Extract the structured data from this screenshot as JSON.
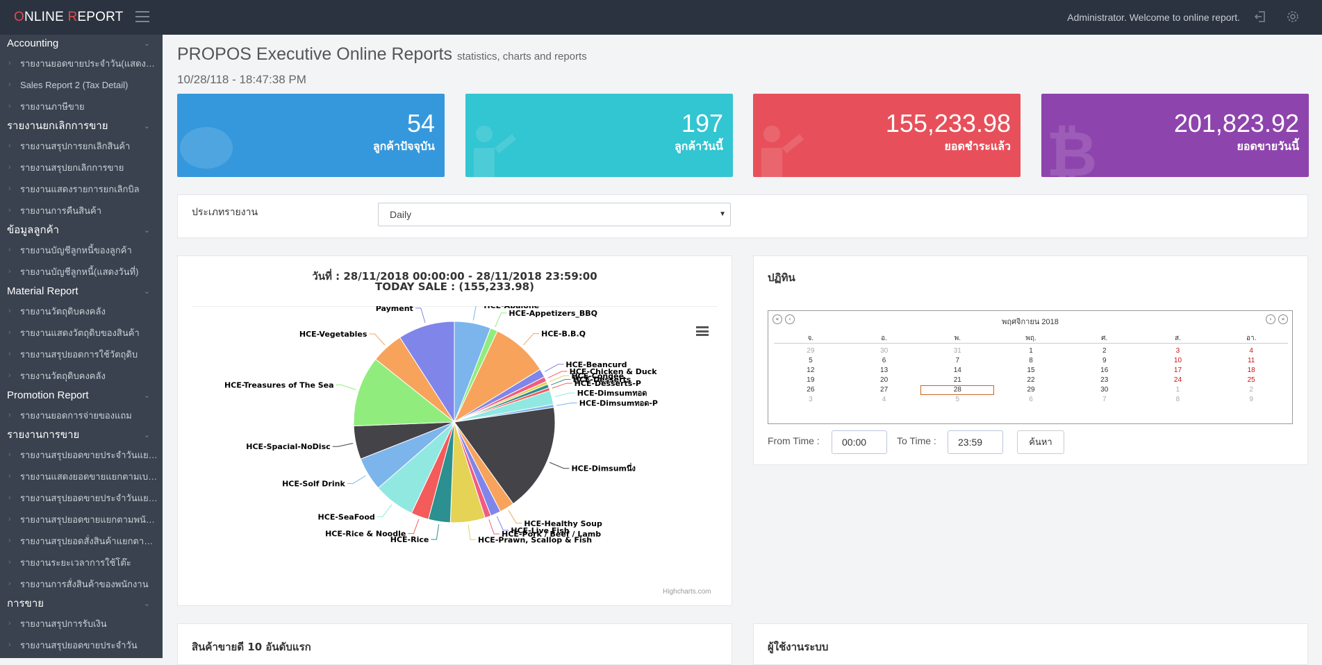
{
  "header": {
    "logo_o": "O",
    "logo_nline": "NLINE ",
    "logo_r": "R",
    "logo_eport": "EPORT",
    "welcome": "Administrator. Welcome to online report."
  },
  "sidebar": {
    "sections": [
      {
        "title": "Accounting",
        "items": [
          "รายงานยอดขายประจำวัน(แสดงรายละเอียด)",
          "Sales Report 2 (Tax Detail)",
          "รายงานภาษีขาย"
        ]
      },
      {
        "title": "รายงานยกเลิกการขาย",
        "items": [
          "รายงานสรุปการยกเลิกสินค้า",
          "รายงานสรุปยกเลิกการขาย",
          "รายงานแสดงรายการยกเลิกบิล",
          "รายงานการคืนสินค้า"
        ]
      },
      {
        "title": "ข้อมูลลูกค้า",
        "items": [
          "รายงานบัญชีลูกหนี้ของลูกค้า",
          "รายงานบัญชีลูกหนี้(แสดงวันที่)"
        ]
      },
      {
        "title": "Material Report",
        "items": [
          "รายงานวัตถุดิบคงคลัง",
          "รายงานแสดงวัตถุดิบของสินค้า",
          "รายงานสรุปยอดการใช้วัตถุดิบ",
          "รายงานวัตถุดิบคงคลัง"
        ]
      },
      {
        "title": "Promotion Report",
        "items": [
          "รายงานยอดการจ่ายของแถม"
        ]
      },
      {
        "title": "รายงานการขาย",
        "items": [
          "รายงานสรุปยอดขายประจำวันแยกตามกลุ่ม",
          "รายงานแสดงยอดขายแยกตามเบอร์โต๊ะ",
          "รายงานสรุปยอดขายประจำวันแยกตามประเภท",
          "รายงานสรุปยอดขายแยกตามพนักงาน",
          "รายงานสรุปยอดสั่งสินค้าแยกตามครัว",
          "รายงานระยะเวลาการใช้โต๊ะ",
          "รายงานการสั่งสินค้าของพนักงาน"
        ]
      },
      {
        "title": "การขาย",
        "items": [
          "รายงานสรุปการรับเงิน",
          "รายงานสรุปยอดขายประจำวัน"
        ]
      }
    ]
  },
  "page": {
    "title": "PROPOS Executive Online Reports",
    "subtitle": "statistics, charts and reports",
    "datetime": "10/28/118 - 18:47:38 PM"
  },
  "stats": [
    {
      "value": "54",
      "label": "ลูกค้าปัจจุบัน",
      "color": "#3598dc"
    },
    {
      "value": "197",
      "label": "ลูกค้าวันนี้",
      "color": "#32c5d2"
    },
    {
      "value": "155,233.98",
      "label": "ยอดชำระแล้ว",
      "color": "#e7505a"
    },
    {
      "value": "201,823.92",
      "label": "ยอดขายวันนี้",
      "color": "#8e44ad"
    }
  ],
  "filter": {
    "label": "ประเภทรายงาน",
    "selected": "Daily"
  },
  "chart_panel": {
    "line1": "วันที่ : 28/11/2018 00:00:00 - 28/11/2018 23:59:00",
    "line2": "TODAY SALE : (155,233.98)",
    "credits": "Highcharts.com"
  },
  "chart_data": {
    "type": "pie",
    "title": "TODAY SALE : (155,233.98)",
    "slices": [
      {
        "name": "HCE-Abalone",
        "value": 6.0,
        "color": "#7cb5ec"
      },
      {
        "name": "HCE-Appetizers_BBQ",
        "value": 1.2,
        "color": "#90ed7d"
      },
      {
        "name": "HCE-B.B.Q",
        "value": 9.4,
        "color": "#f7a35c"
      },
      {
        "name": "HCE-Beancurd",
        "value": 1.4,
        "color": "#8085e9"
      },
      {
        "name": "HCE-Chicken & Duck",
        "value": 0.8,
        "color": "#f15c80"
      },
      {
        "name": "HCE-Congee",
        "value": 0.5,
        "color": "#e4d354"
      },
      {
        "name": "HCE-Desserts",
        "value": 0.6,
        "color": "#2b908f"
      },
      {
        "name": "HCE-Desserts-P",
        "value": 0.5,
        "color": "#f45b5b"
      },
      {
        "name": "HCE-Dimsumทอด",
        "value": 2.3,
        "color": "#91e8e1"
      },
      {
        "name": "HCE-Dimsumทอด-P",
        "value": 0.5,
        "color": "#7cb5ec"
      },
      {
        "name": "HCE-Dimsumนึ่ง",
        "value": 17.8,
        "color": "#434348"
      },
      {
        "name": "HCE-Healthy Soup",
        "value": 2.4,
        "color": "#f7a35c"
      },
      {
        "name": "HCE-Live Fish",
        "value": 1.7,
        "color": "#8085e9"
      },
      {
        "name": "HCE-Pork / Beef / Lamb",
        "value": 1.0,
        "color": "#f15c80"
      },
      {
        "name": "HCE-Prawn, Scallop & Fish",
        "value": 5.7,
        "color": "#e4d354"
      },
      {
        "name": "HCE-Rice",
        "value": 3.6,
        "color": "#2b908f"
      },
      {
        "name": "HCE-Rice & Noodle",
        "value": 2.9,
        "color": "#f45b5b"
      },
      {
        "name": "HCE-SeaFood",
        "value": 6.8,
        "color": "#91e8e1"
      },
      {
        "name": "HCE-Solf Drink",
        "value": 5.5,
        "color": "#7cb5ec"
      },
      {
        "name": "HCE-Spacial-NoDisc",
        "value": 5.5,
        "color": "#434348"
      },
      {
        "name": "HCE-Treasures of The Sea",
        "value": 11.6,
        "color": "#90ed7d"
      },
      {
        "name": "HCE-Vegetables",
        "value": 5.3,
        "color": "#f7a35c"
      },
      {
        "name": "Payment",
        "value": 9.3,
        "color": "#8085e9"
      }
    ]
  },
  "calendar_panel": {
    "title": "ปฏิทิน",
    "month": "พฤศจิกายน 2018",
    "weekdays": [
      "จ.",
      "อ.",
      "พ.",
      "พฤ.",
      "ศ.",
      "ส.",
      "อา."
    ],
    "weeks": [
      [
        "29",
        "30",
        "31",
        "1",
        "2",
        "3",
        "4"
      ],
      [
        "5",
        "6",
        "7",
        "8",
        "9",
        "10",
        "11"
      ],
      [
        "12",
        "13",
        "14",
        "15",
        "16",
        "17",
        "18"
      ],
      [
        "19",
        "20",
        "21",
        "22",
        "23",
        "24",
        "25"
      ],
      [
        "26",
        "27",
        "28",
        "29",
        "30",
        "1",
        "2"
      ],
      [
        "3",
        "4",
        "5",
        "6",
        "7",
        "8",
        "9"
      ]
    ],
    "selected_day": "28",
    "from_label": "From Time :",
    "from_value": "00:00",
    "to_label": "To Time :",
    "to_value": "23:59",
    "search_label": "ค้นหา"
  },
  "bottom": {
    "left_title": "สินค้าขายดี 10 อันดับแรก",
    "right_title": "ผู้ใช้งานระบบ"
  }
}
